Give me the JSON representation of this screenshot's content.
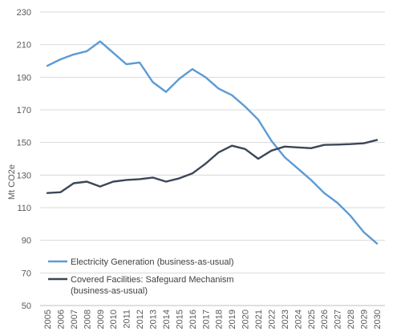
{
  "chart_data": {
    "type": "line",
    "ylabel": "Mt CO2e",
    "xlabel": "",
    "ylim": [
      50,
      230
    ],
    "yticks": [
      50,
      70,
      90,
      110,
      130,
      150,
      170,
      190,
      210,
      230
    ],
    "grid": true,
    "legend_position": "bottom-left",
    "x": [
      2005,
      2006,
      2007,
      2008,
      2009,
      2010,
      2011,
      2012,
      2013,
      2014,
      2015,
      2016,
      2017,
      2018,
      2019,
      2020,
      2021,
      2022,
      2023,
      2024,
      2025,
      2026,
      2027,
      2028,
      2029,
      2030
    ],
    "series": [
      {
        "name": "Electricity Generation (business-as-usual)",
        "legend_lines": [
          "Electricity Generation (business-as-usual)"
        ],
        "color": "#5b9bd5",
        "values": [
          197,
          201,
          204,
          206,
          212,
          205,
          198,
          199,
          187,
          181,
          189,
          195,
          190,
          183,
          179,
          172,
          164,
          151,
          141,
          134,
          127,
          119,
          113,
          105,
          95,
          88
        ]
      },
      {
        "name": "Covered Facilities: Safeguard Mechanism (business-as-usual)",
        "legend_lines": [
          "Covered Facilities: Safeguard Mechanism",
          "(business-as-usual)"
        ],
        "color": "#3b4758",
        "values": [
          119,
          119.5,
          125,
          126,
          123,
          126,
          127,
          127.5,
          128.5,
          126,
          128,
          131,
          137,
          144,
          148,
          146,
          140,
          145,
          147.5,
          147,
          146.5,
          148.5,
          148.7,
          149,
          149.5,
          151.5
        ]
      }
    ]
  }
}
